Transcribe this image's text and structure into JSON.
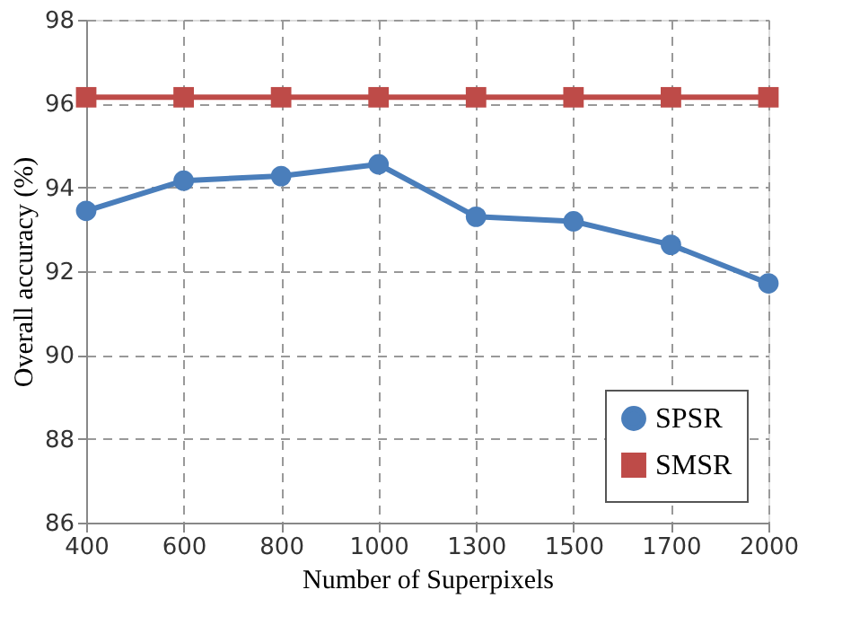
{
  "chart_data": {
    "type": "line",
    "xlabel": "Number of Superpixels",
    "ylabel": "Overall accuracy (%)",
    "categories": [
      "400",
      "600",
      "800",
      "1000",
      "1300",
      "1500",
      "1700",
      "2000"
    ],
    "series": [
      {
        "name": "SPSR",
        "color": "#4a7ebb",
        "marker": "circle",
        "values": [
          93.44,
          94.16,
          94.27,
          94.55,
          93.3,
          93.19,
          92.63,
          91.71
        ]
      },
      {
        "name": "SMSR",
        "color": "#be4b48",
        "marker": "square",
        "values": [
          96.15,
          96.15,
          96.15,
          96.15,
          96.15,
          96.15,
          96.15,
          96.15
        ]
      }
    ],
    "ylim": [
      86,
      98
    ],
    "yticks": [
      86,
      88,
      90,
      92,
      94,
      96,
      98
    ],
    "grid": true,
    "legend": "bottom right",
    "line_style": "solid"
  }
}
